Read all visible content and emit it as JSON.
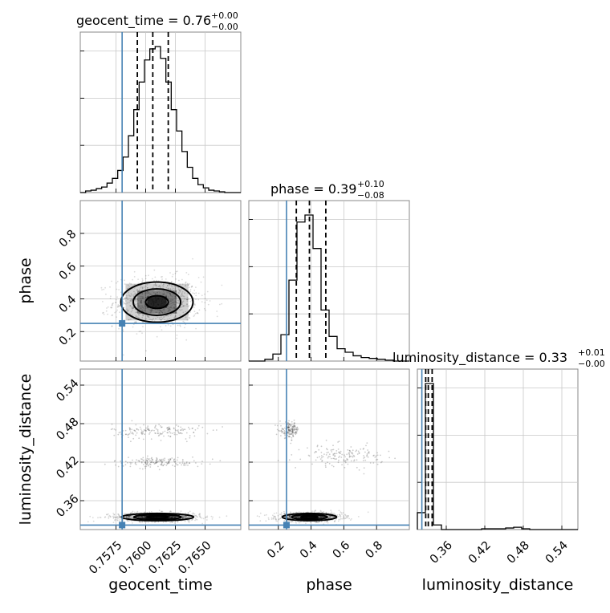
{
  "chart_data": {
    "type": "corner",
    "parameters": [
      "geocent_time",
      "phase",
      "luminosity_distance"
    ],
    "axis_labels": {
      "geocent_time": "geocent_time",
      "phase": "phase",
      "luminosity_distance": "luminosity_distance"
    },
    "ranges": {
      "geocent_time": [
        0.7545,
        0.768
      ],
      "phase": [
        0.02,
        1.0
      ],
      "luminosity_distance": [
        0.315,
        0.565
      ]
    },
    "ticks": {
      "geocent_time": {
        "values": [
          0.7575,
          0.76,
          0.7625,
          0.765
        ],
        "labels": [
          "0.7575",
          "0.7600",
          "0.7625",
          "0.7650"
        ]
      },
      "phase": {
        "values": [
          0.2,
          0.4,
          0.6,
          0.8
        ],
        "labels": [
          "0.2",
          "0.4",
          "0.6",
          "0.8"
        ]
      },
      "luminosity_distance": {
        "values": [
          0.36,
          0.42,
          0.48,
          0.54
        ],
        "labels": [
          "0.36",
          "0.42",
          "0.48",
          "0.54"
        ]
      }
    },
    "titles": {
      "geocent_time": {
        "main": "geocent_time = 0.76",
        "plus": "+0.00",
        "minus": "−0.00"
      },
      "phase": {
        "main": "phase = 0.39",
        "plus": "+0.10",
        "minus": "−0.08"
      },
      "luminosity_distance": {
        "main": "luminosity_distance = 0.33",
        "plus": "+0.01",
        "minus": "−0.00"
      }
    },
    "truths": {
      "geocent_time": 0.75802,
      "phase": 0.25,
      "luminosity_distance": 0.322
    },
    "quantiles": {
      "geocent_time": [
        0.7593,
        0.7606,
        0.7619
      ],
      "phase": [
        0.31,
        0.39,
        0.49
      ],
      "luminosity_distance": [
        0.328,
        0.332,
        0.338
      ]
    },
    "histograms": {
      "geocent_time": {
        "edges": [
          0.7545,
          0.75495,
          0.7554,
          0.75585,
          0.7563,
          0.75675,
          0.7572,
          0.75765,
          0.7581,
          0.75855,
          0.759,
          0.75945,
          0.7599,
          0.76035,
          0.7608,
          0.76125,
          0.7617,
          0.76215,
          0.7626,
          0.76305,
          0.7635,
          0.76395,
          0.7644,
          0.76485,
          0.7653,
          0.76575,
          0.7662,
          0.76665,
          0.7671,
          0.76755,
          0.768
        ],
        "counts": [
          0,
          2,
          3,
          5,
          7,
          12,
          18,
          28,
          45,
          72,
          105,
          140,
          168,
          182,
          185,
          170,
          140,
          105,
          78,
          52,
          32,
          18,
          10,
          6,
          3,
          2,
          1,
          0,
          0,
          0
        ]
      },
      "phase": {
        "edges": [
          0.02,
          0.069,
          0.118,
          0.167,
          0.216,
          0.265,
          0.314,
          0.363,
          0.412,
          0.461,
          0.51,
          0.559,
          0.608,
          0.657,
          0.706,
          0.755,
          0.804,
          0.853,
          0.902,
          0.951,
          1.0
        ],
        "counts": [
          0,
          0,
          2,
          8,
          30,
          92,
          158,
          166,
          128,
          58,
          28,
          14,
          10,
          6,
          4,
          3,
          2,
          1,
          0,
          0
        ]
      },
      "luminosity_distance": {
        "edges": [
          0.315,
          0.3275,
          0.34,
          0.3525,
          0.365,
          0.3775,
          0.39,
          0.4025,
          0.415,
          0.4275,
          0.44,
          0.4525,
          0.465,
          0.4775,
          0.49,
          0.5025,
          0.515,
          0.5275,
          0.54,
          0.5525,
          0.565
        ],
        "counts": [
          22,
          190,
          6,
          0,
          0,
          0,
          0,
          0,
          1,
          1,
          1,
          2,
          3,
          1,
          0,
          0,
          0,
          0,
          0,
          0
        ]
      }
    },
    "contour_levels_2d": {
      "phase_vs_geocent_time": {
        "center": [
          0.76095,
          0.38
        ],
        "sigma": [
          0.00165,
          0.07
        ]
      },
      "luminosity_distance_vs_geocent_time": {
        "center": [
          0.761,
          0.3345
        ],
        "sigma": [
          0.00165,
          0.0032
        ]
      },
      "luminosity_distance_vs_phase": {
        "center": [
          0.39,
          0.3345
        ],
        "sigma": [
          0.09,
          0.0032
        ]
      }
    },
    "grid": true
  }
}
